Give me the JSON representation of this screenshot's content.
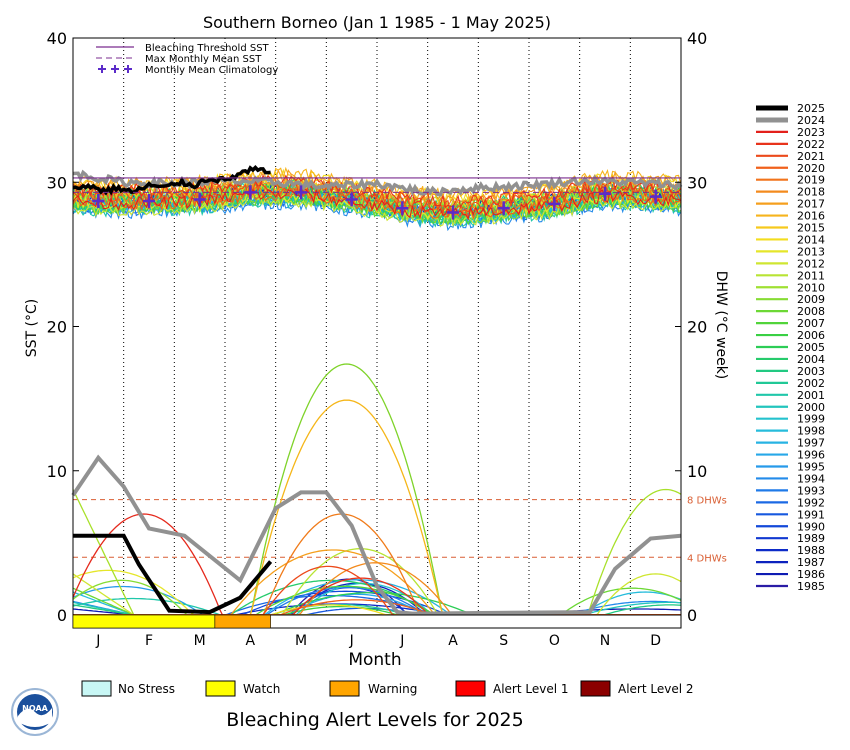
{
  "chart_data": {
    "type": "line",
    "title": "Southern Borneo      (Jan 1 1985 - 1 May 2025)",
    "xlabel": "Month",
    "ylabel_left": "SST (°C)",
    "ylabel_right": "DHW (°C week)",
    "ylim": [
      0,
      40
    ],
    "xlim": [
      0,
      12
    ],
    "yticks": [
      "0",
      "10",
      "20",
      "30",
      "40"
    ],
    "x_tick_labels": [
      "J",
      "F",
      "M",
      "A",
      "M",
      "J",
      "J",
      "A",
      "S",
      "O",
      "N",
      "D"
    ],
    "grid": "vertical dotted lines at month boundaries",
    "bleaching_threshold_sst": 30.3,
    "max_monthly_mean_sst": 29.3,
    "dhw_markers": [
      {
        "value": 8,
        "label": "8 DHWs",
        "color": "#d95f34"
      },
      {
        "value": 4,
        "label": "4 DHWs",
        "color": "#d95f34"
      }
    ],
    "legend_inline": [
      {
        "label": "Bleaching Threshold SST",
        "style": "solid",
        "color": "#7b2c8f"
      },
      {
        "label": "Max Monthly Mean SST",
        "style": "dashed",
        "color": "#7b2c8f"
      },
      {
        "label": "Monthly Mean Climatology",
        "style": "plus",
        "color": "#5b2bc9"
      }
    ],
    "climatology": {
      "x": [
        0.5,
        1.5,
        2.5,
        3.5,
        4.5,
        5.5,
        6.5,
        7.5,
        8.5,
        9.5,
        10.5,
        11.5
      ],
      "y": [
        28.7,
        28.7,
        28.8,
        29.3,
        29.3,
        28.8,
        28.2,
        27.9,
        28.2,
        28.5,
        29.2,
        29.0
      ]
    },
    "series_2025_sst": {
      "x": [
        0,
        0.3,
        0.6,
        0.9,
        1.2,
        1.5,
        1.8,
        2.1,
        2.4,
        2.7,
        3.0,
        3.3,
        3.6,
        3.9
      ],
      "y": [
        29.5,
        29.8,
        29.4,
        29.6,
        29.3,
        29.8,
        29.6,
        30.0,
        29.8,
        30.3,
        30.1,
        30.6,
        30.9,
        30.6
      ]
    },
    "series_2024_sst": {
      "x": [
        0,
        1,
        2,
        3,
        4,
        5,
        6,
        7,
        8,
        9,
        10,
        11,
        12
      ],
      "y": [
        30.6,
        30.0,
        29.9,
        30.1,
        30.0,
        29.7,
        29.9,
        29.3,
        29.6,
        29.8,
        30.1,
        30.0,
        29.8
      ]
    },
    "series_2025_dhw": {
      "x": [
        0,
        1.0,
        1.3,
        1.9,
        2.7,
        3.3,
        3.9
      ],
      "y": [
        5.5,
        5.5,
        3.5,
        0.3,
        0.2,
        1.2,
        3.7
      ]
    },
    "series_2024_dhw": {
      "x": [
        0,
        0.5,
        1.0,
        1.5,
        2.2,
        3.3,
        4.0,
        4.5,
        5.0,
        5.5,
        6.0,
        6.4,
        6.7,
        10.2,
        10.7,
        11.4,
        12.0
      ],
      "y": [
        8.3,
        10.9,
        8.9,
        6.0,
        5.5,
        2.4,
        7.4,
        8.5,
        8.5,
        6.2,
        2.0,
        0.2,
        0.1,
        0.2,
        3.2,
        5.3,
        5.5
      ]
    },
    "dhw_peaks_other_years": [
      {
        "year": "2010",
        "peak": 17.4,
        "at": 5.4,
        "color": "#7fd32a"
      },
      {
        "year": "2016",
        "peak": 14.9,
        "at": 5.4,
        "color": "#f5b619"
      },
      {
        "year": "2019",
        "peak": 7.0,
        "at": 5.3,
        "color": "#f07b1a"
      },
      {
        "year": "2023",
        "peak": 7.0,
        "at": 1.4,
        "color": "#e52a1d"
      },
      {
        "year": "2015",
        "peak": 8.7,
        "at": 11.7,
        "color": "#a8e02a"
      }
    ],
    "years": [
      "2025",
      "2024",
      "2023",
      "2022",
      "2021",
      "2020",
      "2019",
      "2018",
      "2017",
      "2016",
      "2015",
      "2014",
      "2013",
      "2012",
      "2011",
      "2010",
      "2009",
      "2008",
      "2007",
      "2006",
      "2005",
      "2004",
      "2003",
      "2002",
      "2001",
      "2000",
      "1999",
      "1998",
      "1997",
      "1996",
      "1995",
      "1994",
      "1993",
      "1992",
      "1991",
      "1990",
      "1989",
      "1988",
      "1987",
      "1986",
      "1985"
    ],
    "year_colors": [
      "#000000",
      "#919191",
      "#e3201b",
      "#e8331b",
      "#ec4a1b",
      "#f0611b",
      "#f2741c",
      "#f38a1d",
      "#f59f1d",
      "#f6b41d",
      "#f6c91d",
      "#f3dd1f",
      "#e5e62a",
      "#cfe631",
      "#b8e433",
      "#9fe033",
      "#86dc33",
      "#6cd835",
      "#51d43a",
      "#39d044",
      "#2ccd56",
      "#26cb6c",
      "#22c982",
      "#20c896",
      "#20c7aa",
      "#22c5bd",
      "#24c2ce",
      "#26bcdb",
      "#27b3e3",
      "#27a8e8",
      "#269aea",
      "#238bea",
      "#1f7ae8",
      "#1b69e4",
      "#1758df",
      "#1348d9",
      "#1038d1",
      "#0d2bc8",
      "#0c22be",
      "#0e1bb3",
      "#2a1ca6"
    ],
    "alert_bar_2025": [
      {
        "from": 0,
        "to": 2.8,
        "level": "Watch",
        "color": "#ffff00"
      },
      {
        "from": 2.8,
        "to": 3.9,
        "level": "Warning",
        "color": "#ffa500"
      }
    ],
    "alert_legend": [
      {
        "label": "No Stress",
        "color": "#c8f7f5"
      },
      {
        "label": "Watch",
        "color": "#ffff00"
      },
      {
        "label": "Warning",
        "color": "#ffa500"
      },
      {
        "label": "Alert Level 1",
        "color": "#ff0000"
      },
      {
        "label": "Alert Level 2",
        "color": "#8b0000"
      }
    ],
    "footer_title": "Bleaching Alert Levels for 2025",
    "logo_text": "NOAA"
  }
}
